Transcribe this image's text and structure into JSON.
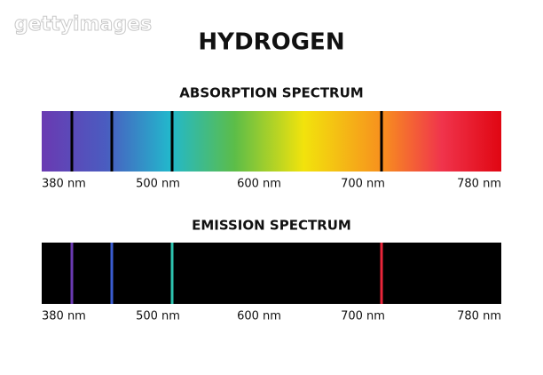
{
  "watermark": "gettyimages",
  "title": "HYDROGEN",
  "sections": [
    {
      "title": "ABSORPTION SPECTRUM",
      "ticks": [
        "380 nm",
        "500 nm",
        "600 nm",
        "700 nm",
        "780 nm"
      ]
    },
    {
      "title": "EMISSION SPECTRUM",
      "ticks": [
        "380 nm",
        "500 nm",
        "600 nm",
        "700 nm",
        "780 nm"
      ]
    }
  ]
}
